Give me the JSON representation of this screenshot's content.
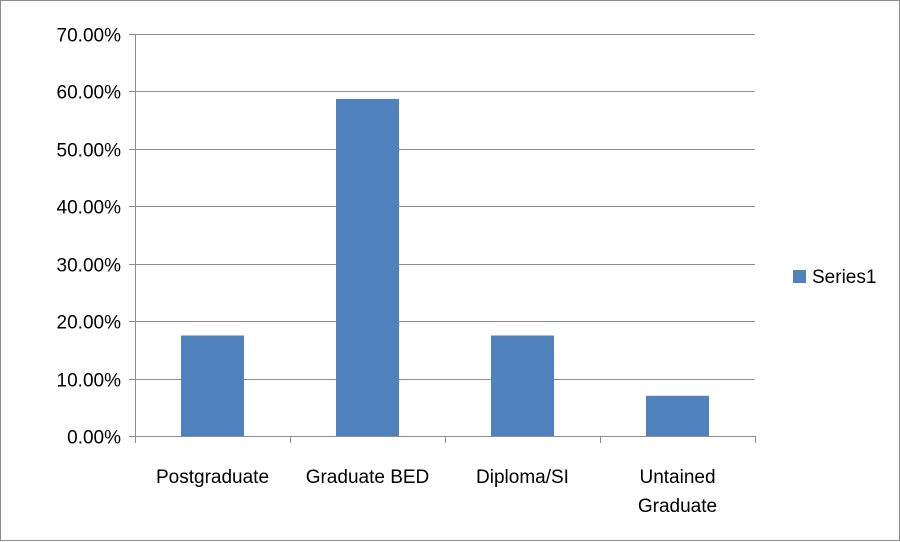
{
  "chart_data": {
    "type": "bar",
    "categories": [
      [
        "Postgraduate"
      ],
      [
        "Graduate BED"
      ],
      [
        "Diploma/SI"
      ],
      [
        "Untained",
        "Graduate"
      ]
    ],
    "series": [
      {
        "name": "Series1",
        "values": [
          0.175,
          0.587,
          0.175,
          0.07
        ],
        "color": "#4f81bd"
      }
    ],
    "ylim": [
      0,
      0.7
    ],
    "yticks": [
      0,
      0.1,
      0.2,
      0.3,
      0.4,
      0.5,
      0.6,
      0.7
    ],
    "ytick_labels": [
      "0.00%",
      "10.00%",
      "20.00%",
      "30.00%",
      "40.00%",
      "50.00%",
      "60.00%",
      "70.00%"
    ],
    "grid": true,
    "legend_position": "right",
    "title": "",
    "xlabel": "",
    "ylabel": ""
  },
  "colors": {
    "gridline": "#8c8c8c",
    "axis": "#8c8c8c",
    "bar": "#4f81bd"
  }
}
